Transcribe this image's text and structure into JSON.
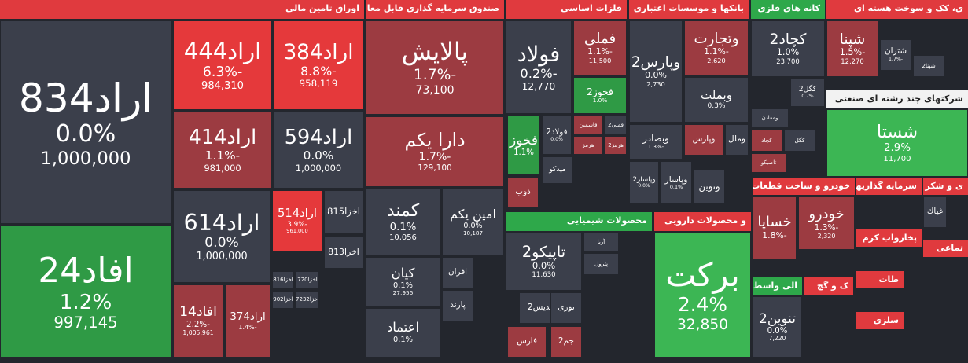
{
  "sectors": [
    {
      "title": "اوراق تامین مالی",
      "tiles": [
        {
          "name": "اراد834",
          "change": "0.0%",
          "volume": "1,000,000"
        },
        {
          "name": "افاد24",
          "change": "1.2%",
          "volume": "997,145"
        },
        {
          "name": "اراد444",
          "change": "-6.3%",
          "volume": "984,310"
        },
        {
          "name": "اراد384",
          "change": "-8.8%",
          "volume": "958,119"
        },
        {
          "name": "اراد414",
          "change": "-1.1%",
          "volume": "981,000"
        },
        {
          "name": "اراد594",
          "change": "0.0%",
          "volume": "1,000,000"
        },
        {
          "name": "اراد614",
          "change": "0.0%",
          "volume": "1,000,000"
        },
        {
          "name": "اراد514",
          "change": "-3.9%",
          "volume": "961,000"
        },
        {
          "name": "افاد14",
          "change": "-2.2%",
          "volume": "1,005,961"
        },
        {
          "name": "اراد374",
          "change": "-1.4%"
        },
        {
          "name": "اخزا815"
        },
        {
          "name": "اخزا813"
        },
        {
          "name": "اخزا816"
        },
        {
          "name": "اخزا720"
        },
        {
          "name": "اخزا902"
        },
        {
          "name": "اخزا7232"
        }
      ]
    },
    {
      "title": "صندوق سرمایه گذاری قابل معامله",
      "tiles": [
        {
          "name": "پالایش",
          "change": "-1.7%",
          "volume": "73,100"
        },
        {
          "name": "دارا یکم",
          "change": "-1.7%",
          "volume": "129,100"
        },
        {
          "name": "کمند",
          "change": "0.1%",
          "volume": "10,056"
        },
        {
          "name": "امین یکم",
          "change": "0.0%",
          "volume": "10,187"
        },
        {
          "name": "کیان",
          "change": "0.1%",
          "volume": "27,955"
        },
        {
          "name": "اعتماد",
          "change": "0.1%"
        },
        {
          "name": "افران"
        },
        {
          "name": "پارند"
        }
      ]
    },
    {
      "title": "فلزات اساسی",
      "tiles": [
        {
          "name": "فولاد",
          "change": "-0.2%",
          "volume": "12,770"
        },
        {
          "name": "فملی",
          "change": "-1.1%",
          "volume": "11,500"
        },
        {
          "name": "فخوز2",
          "change": "1.0%"
        },
        {
          "name": "فخوز",
          "change": "1.1%"
        },
        {
          "name": "فولاد2",
          "change": "0.0%"
        },
        {
          "name": "قاسمین"
        },
        {
          "name": "فملی2"
        },
        {
          "name": "هرمز2"
        },
        {
          "name": "هرمز"
        },
        {
          "name": "میدکو"
        },
        {
          "name": "ذوب"
        }
      ]
    },
    {
      "title": "محصولات شیمیایی",
      "tiles": [
        {
          "name": "تاپیکو2",
          "change": "0.0%",
          "volume": "11,630"
        },
        {
          "name": "آریا"
        },
        {
          "name": "پترول"
        },
        {
          "name": "شپدیس2"
        },
        {
          "name": "نوری"
        },
        {
          "name": "جم2"
        },
        {
          "name": "فارس"
        }
      ]
    },
    {
      "title": "بانکها و موسسات اعتباری",
      "tiles": [
        {
          "name": "وپارس2",
          "change": "0.0%",
          "volume": "2,730"
        },
        {
          "name": "وتجارت",
          "change": "-1.1%",
          "volume": "2,620"
        },
        {
          "name": "وبملت",
          "change": "0.3%"
        },
        {
          "name": "وبصادر",
          "change": "-1.3%"
        },
        {
          "name": "وپارس"
        },
        {
          "name": "وملل"
        },
        {
          "name": "وپاسار2",
          "change": "0.0%"
        },
        {
          "name": "وپاسار",
          "change": "0.1%"
        },
        {
          "name": "ونوین"
        }
      ]
    },
    {
      "title": "کانه های فلزی",
      "tiles": [
        {
          "name": "کچاد2",
          "change": "1.0%",
          "volume": "23,700"
        },
        {
          "name": "کگل2",
          "change": "0.7%"
        },
        {
          "name": "ومعادن"
        },
        {
          "name": "کچاد"
        },
        {
          "name": "کگل"
        },
        {
          "name": "تاصیکو"
        }
      ]
    },
    {
      "title": "ی، کک و سوخت هسته ای",
      "tiles": [
        {
          "name": "شپنا",
          "change": "-1.5%",
          "volume": "12,270"
        },
        {
          "name": "شتران",
          "change": "-1.7%"
        },
        {
          "name": "شپنا2"
        }
      ]
    },
    {
      "title": "شرکتهای چند رشته ای صنعتی",
      "tiles": [
        {
          "name": "شستا",
          "change": "2.9%",
          "volume": "11,700"
        }
      ]
    },
    {
      "title": "و محصولات دارویی",
      "tiles": [
        {
          "name": "برکت",
          "change": "2.4%",
          "volume": "32,850"
        }
      ]
    },
    {
      "title": "خودرو و ساخت قطعات",
      "tiles": [
        {
          "name": "خودرو",
          "change": "-1.3%",
          "volume": "2,320"
        },
        {
          "name": "خساپا",
          "change": "-1.8%"
        }
      ]
    },
    {
      "title": "سرمایه گذاریها",
      "tiles": []
    },
    {
      "title": "ی و شکر",
      "tiles": [
        {
          "name": "غیاك"
        }
      ]
    },
    {
      "title": "الی واسط",
      "tiles": [
        {
          "name": "تنوین2",
          "change": "0.0%",
          "volume": "7,220"
        }
      ]
    },
    {
      "title": "ک و گچ",
      "tiles": []
    },
    {
      "title": "پخارواب کرم",
      "tiles": []
    },
    {
      "title": "تماعی",
      "tiles": []
    },
    {
      "title": "طات",
      "tiles": []
    },
    {
      "title": "سلزی",
      "tiles": []
    }
  ]
}
